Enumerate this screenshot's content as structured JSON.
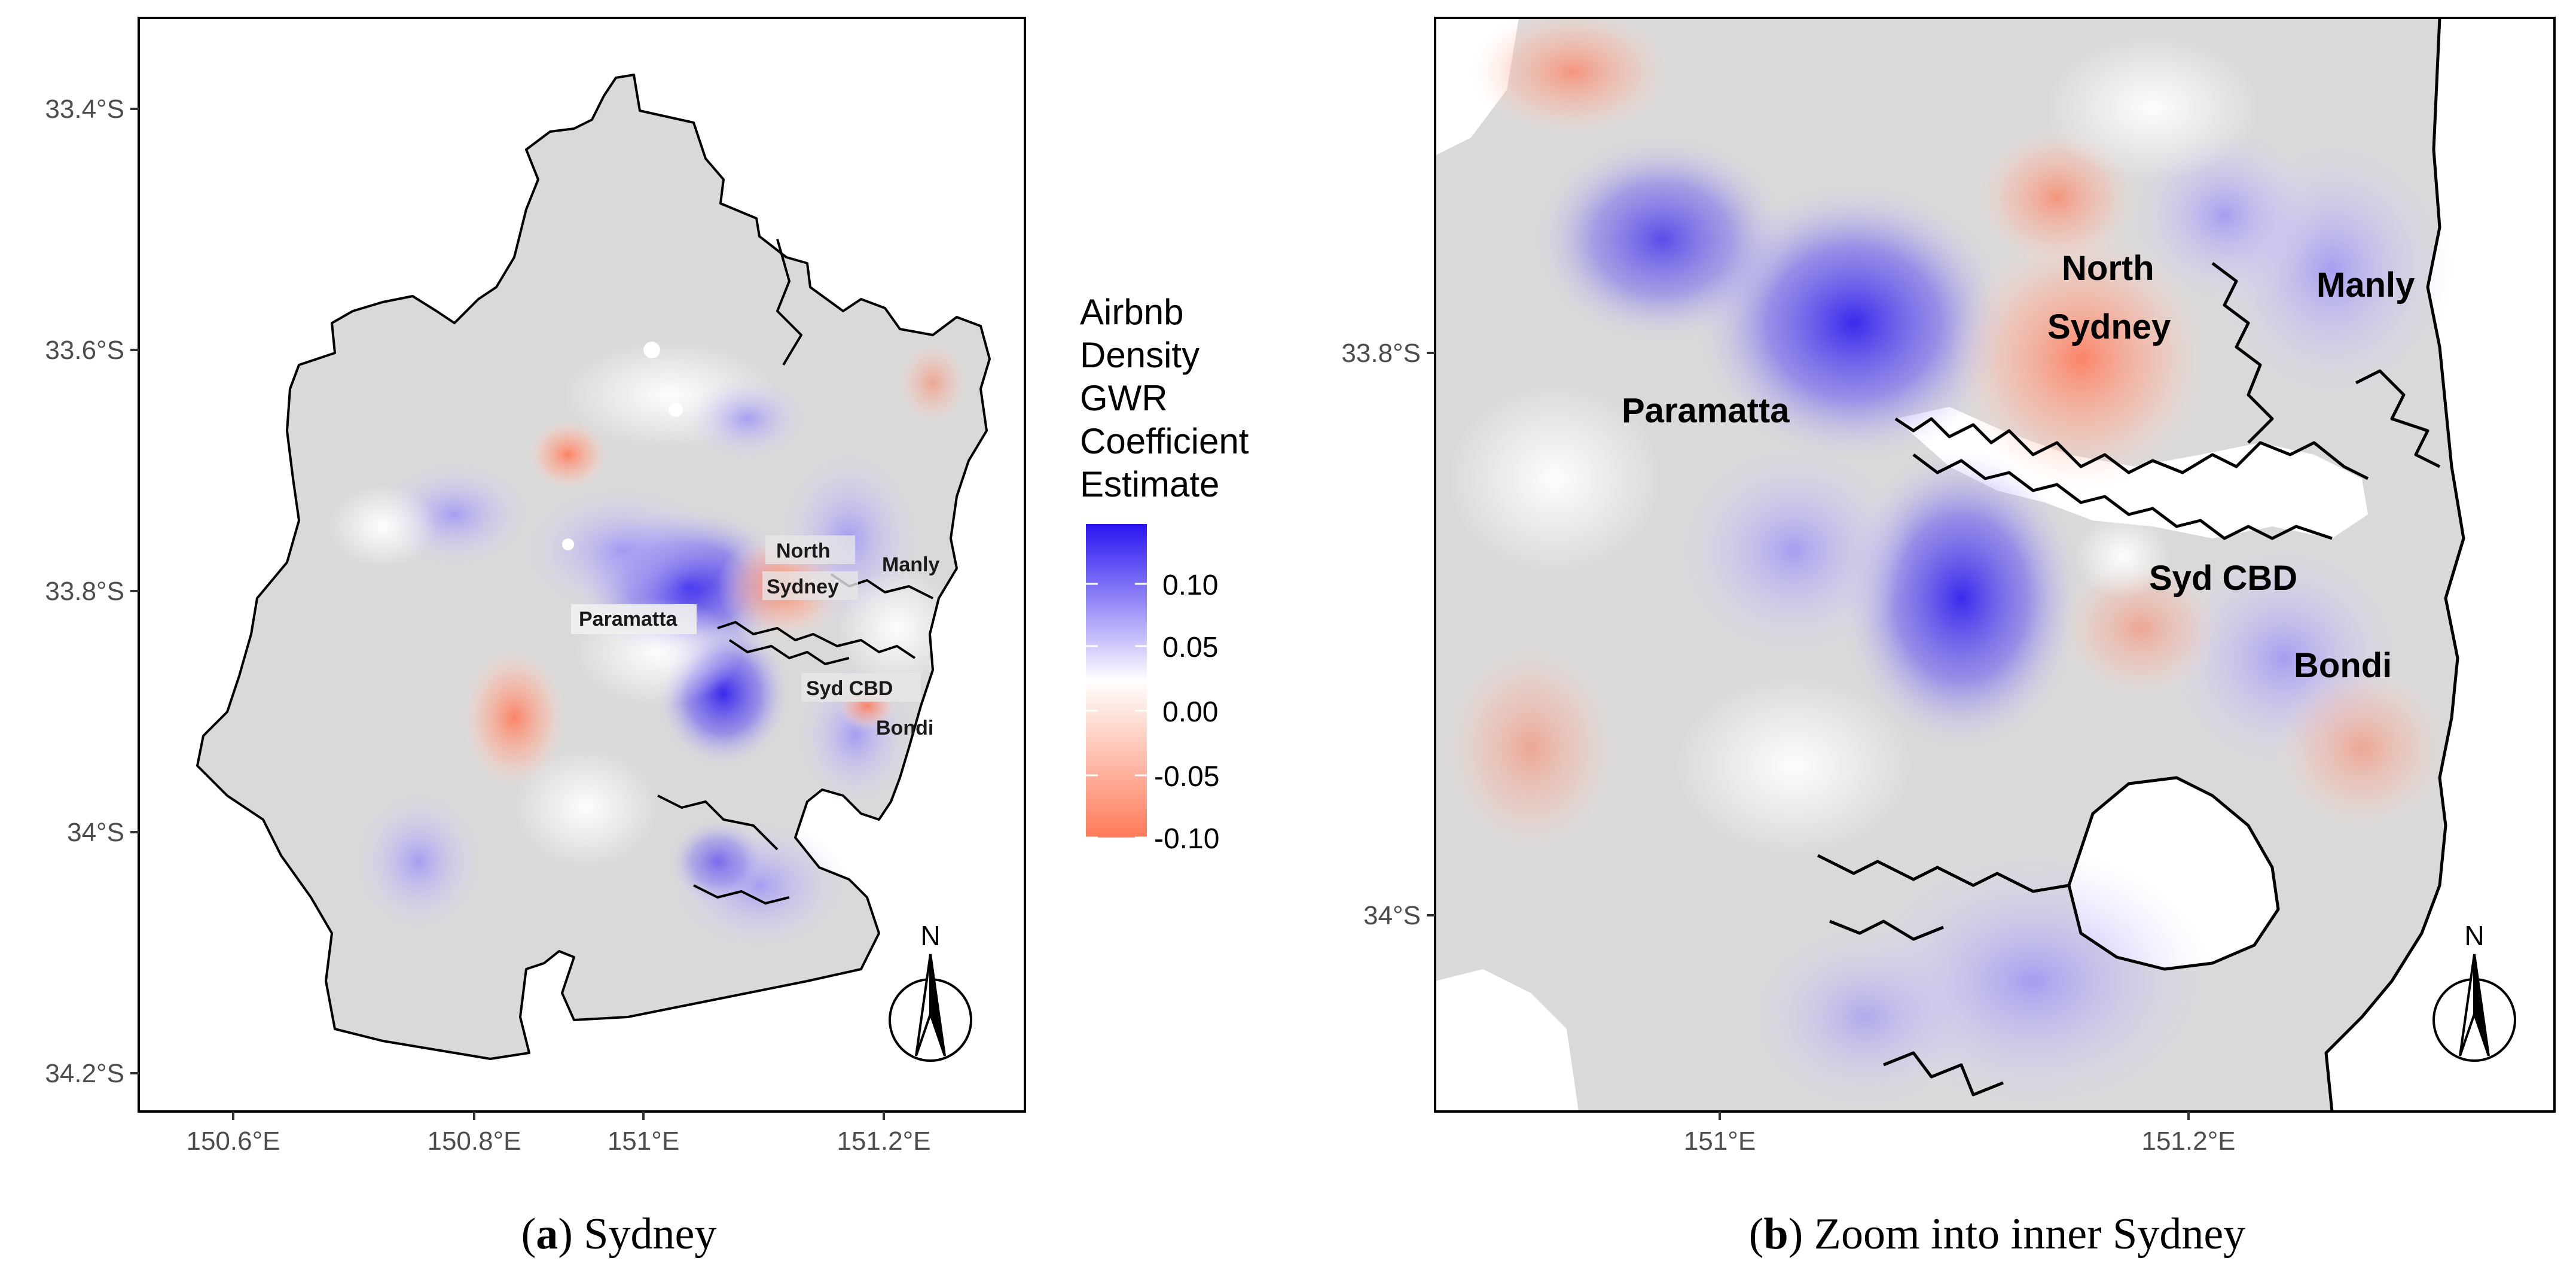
{
  "panels": [
    {
      "caption_letter": "a",
      "caption_text": ") Sydney",
      "y_ticks": [
        "33.4°S",
        "33.6°S",
        "33.8°S",
        "34°S",
        "34.2°S"
      ],
      "x_ticks": [
        "150.6°E",
        "150.8°E",
        "151°E",
        "151.2°E"
      ],
      "places": [
        "North",
        "Sydney",
        "Manly",
        "Paramatta",
        "Syd CBD",
        "Bondi"
      ],
      "north_label": "N"
    },
    {
      "caption_letter": "b",
      "caption_text": ") Zoom into inner Sydney",
      "y_ticks": [
        "33.8°S",
        "34°S"
      ],
      "x_ticks": [
        "151°E",
        "151.2°E"
      ],
      "places": [
        "North",
        "Sydney",
        "Manly",
        "Paramatta",
        "Syd CBD",
        "Bondi"
      ],
      "north_label": "N"
    }
  ],
  "legend": {
    "title_lines": [
      "Airbnb",
      "Density",
      "GWR",
      "Coefficient",
      "Estimate"
    ],
    "ticks": [
      "0.10",
      "0.05",
      "0.00",
      "-0.05",
      "-0.10"
    ],
    "colors": {
      "high": "#3b28f2",
      "mid": "#ffffff",
      "low": "#ff7f5e"
    }
  },
  "colors": {
    "land": "#d9d9d9",
    "coast": "#000000"
  }
}
